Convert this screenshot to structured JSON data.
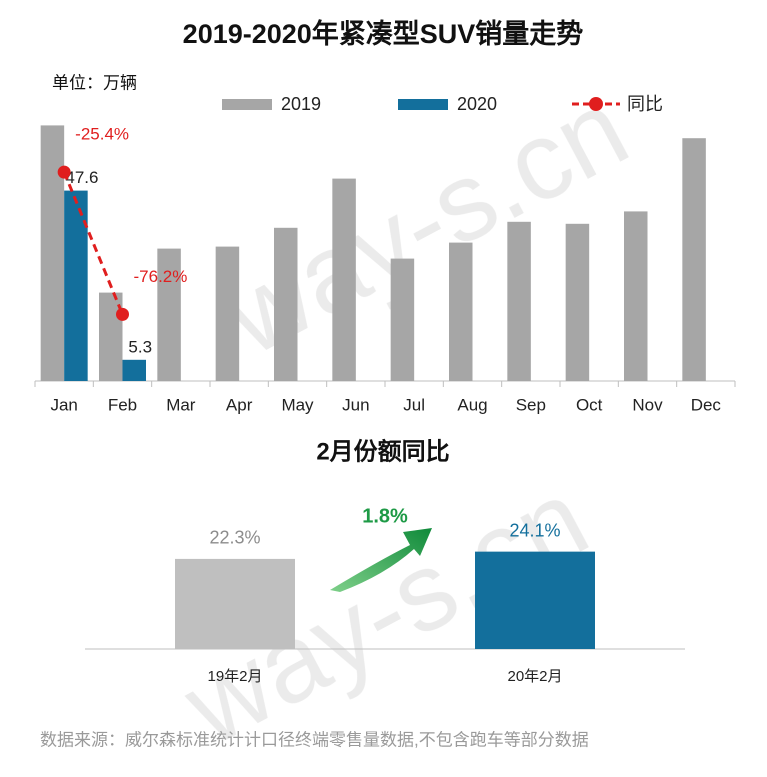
{
  "watermark": "way-s.cn",
  "source": "数据来源：威尔森标准统计计口径终端零售量数据,不包含跑车等部分数据",
  "chart_data": [
    {
      "type": "bar",
      "title": "2019-2020年紧凑型SUV销量走势",
      "unit_label": "单位：万辆",
      "categories": [
        "Jan",
        "Feb",
        "Mar",
        "Apr",
        "May",
        "Jun",
        "Jul",
        "Aug",
        "Sep",
        "Oct",
        "Nov",
        "Dec"
      ],
      "ylim": [
        0,
        70
      ],
      "y2lim": [
        -100,
        0
      ],
      "series": [
        {
          "name": "2019",
          "color": "#a6a6a6",
          "values": [
            63.9,
            22.1,
            33.1,
            33.6,
            38.3,
            50.6,
            30.6,
            34.6,
            39.8,
            39.3,
            42.4,
            60.7
          ]
        },
        {
          "name": "2020",
          "color": "#136f9c",
          "labels": true,
          "values": [
            47.6,
            5.3,
            null,
            null,
            null,
            null,
            null,
            null,
            null,
            null,
            null,
            null
          ]
        },
        {
          "name": "同比",
          "type": "line",
          "axis": "y2",
          "color": "#e01e1e",
          "dashed": true,
          "values": [
            -25.4,
            -76.2,
            null,
            null,
            null,
            null,
            null,
            null,
            null,
            null,
            null,
            null
          ],
          "value_labels": [
            "-25.4%",
            "-76.2%",
            null,
            null,
            null,
            null,
            null,
            null,
            null,
            null,
            null,
            null
          ]
        }
      ]
    },
    {
      "type": "bar",
      "title": "2月份额同比",
      "annotation": "1.8%",
      "annotation_color": "#1e9a46",
      "categories": [
        "19年2月",
        "20年2月"
      ],
      "values": [
        22.3,
        24.1
      ],
      "value_labels": [
        "22.3%",
        "24.1%"
      ],
      "colors": [
        "#bfbfbf",
        "#136f9c"
      ],
      "label_colors": [
        "#8c8c8c",
        "#136f9c"
      ],
      "ylim": [
        0,
        25
      ]
    }
  ]
}
